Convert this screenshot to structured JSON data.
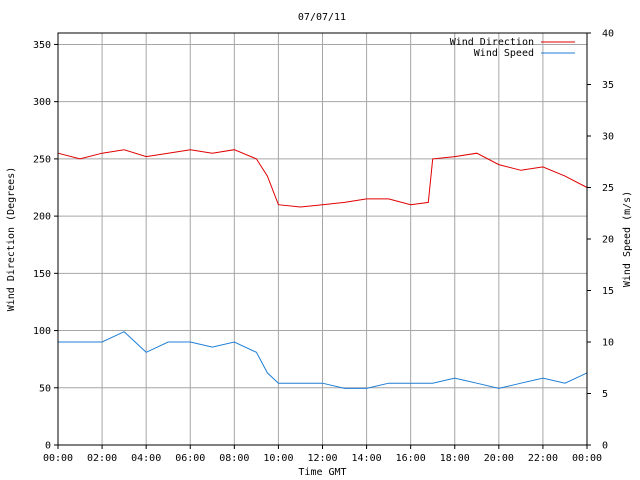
{
  "chart_data": {
    "type": "line",
    "title": "07/07/11",
    "xlabel": "Time GMT",
    "ylabel_left": "Wind Direction (Degrees)",
    "ylabel_right": "Wind Speed (m/s)",
    "x_unit": "hours",
    "xlim": [
      0,
      24
    ],
    "ylim_left": [
      0,
      360
    ],
    "ylim_right": [
      0,
      40
    ],
    "grid": true,
    "legend_position": "top-right",
    "x_ticks": [
      0,
      2,
      4,
      6,
      8,
      10,
      12,
      14,
      16,
      18,
      20,
      22,
      24
    ],
    "x_tick_labels": [
      "00:00",
      "02:00",
      "04:00",
      "06:00",
      "08:00",
      "10:00",
      "12:00",
      "14:00",
      "16:00",
      "18:00",
      "20:00",
      "22:00",
      "00:00"
    ],
    "y_ticks_left": [
      0,
      50,
      100,
      150,
      200,
      250,
      300,
      350
    ],
    "y_ticks_right": [
      0,
      5,
      10,
      15,
      20,
      25,
      30,
      35,
      40
    ],
    "series": [
      {
        "name": "Wind Direction",
        "axis": "left",
        "color": "#e00000",
        "x": [
          0,
          1,
          2,
          3,
          4,
          5,
          6,
          7,
          8,
          9,
          9.5,
          10,
          11,
          12,
          13,
          14,
          15,
          16,
          16.8,
          17,
          18,
          19,
          20,
          21,
          22,
          23,
          24
        ],
        "values": [
          255,
          250,
          255,
          258,
          252,
          255,
          258,
          255,
          258,
          250,
          235,
          210,
          208,
          210,
          212,
          215,
          215,
          210,
          212,
          250,
          252,
          255,
          245,
          240,
          243,
          235,
          225
        ]
      },
      {
        "name": "Wind Speed",
        "axis": "right",
        "color": "#1f7fd6",
        "x": [
          0,
          1,
          2,
          3,
          4,
          5,
          6,
          7,
          8,
          9,
          9.5,
          10,
          11,
          12,
          13,
          14,
          15,
          16,
          17,
          18,
          19,
          20,
          21,
          22,
          23,
          24
        ],
        "values": [
          10,
          10,
          10,
          11,
          9,
          10,
          10,
          9.5,
          10,
          9,
          7,
          6,
          6,
          6,
          5.5,
          5.5,
          6,
          6,
          6,
          6.5,
          6,
          5.5,
          6,
          6.5,
          6,
          7
        ]
      }
    ]
  }
}
